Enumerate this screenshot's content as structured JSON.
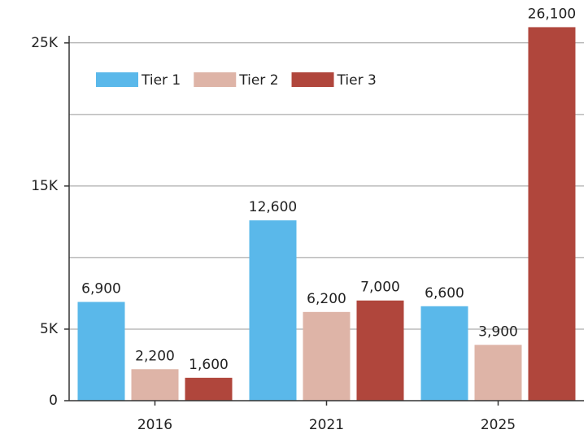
{
  "chart_data": {
    "type": "bar",
    "categories": [
      "2016",
      "2021",
      "2025"
    ],
    "series": [
      {
        "name": "Tier 1",
        "color": "#5ab8ea",
        "values": [
          6900,
          12600,
          6600
        ],
        "value_labels": [
          "6,900",
          "12,600",
          "6,600"
        ]
      },
      {
        "name": "Tier 2",
        "color": "#deb4a7",
        "values": [
          2200,
          6200,
          3900
        ],
        "value_labels": [
          "2,200",
          "6,200",
          "3,900"
        ]
      },
      {
        "name": "Tier 3",
        "color": "#b0463c",
        "values": [
          1600,
          7000,
          26100
        ],
        "value_labels": [
          "1,600",
          "7,000",
          "26,100"
        ]
      }
    ],
    "ylim": [
      0,
      25500
    ],
    "yticks": [
      0,
      {
        "value": 5000,
        "label": "5K"
      },
      {
        "value": 15000,
        "label": "15K"
      },
      {
        "value": 25000,
        "label": "25K"
      }
    ],
    "ygrid": [
      10000,
      20000
    ],
    "grid": true,
    "legend": "top-left"
  }
}
